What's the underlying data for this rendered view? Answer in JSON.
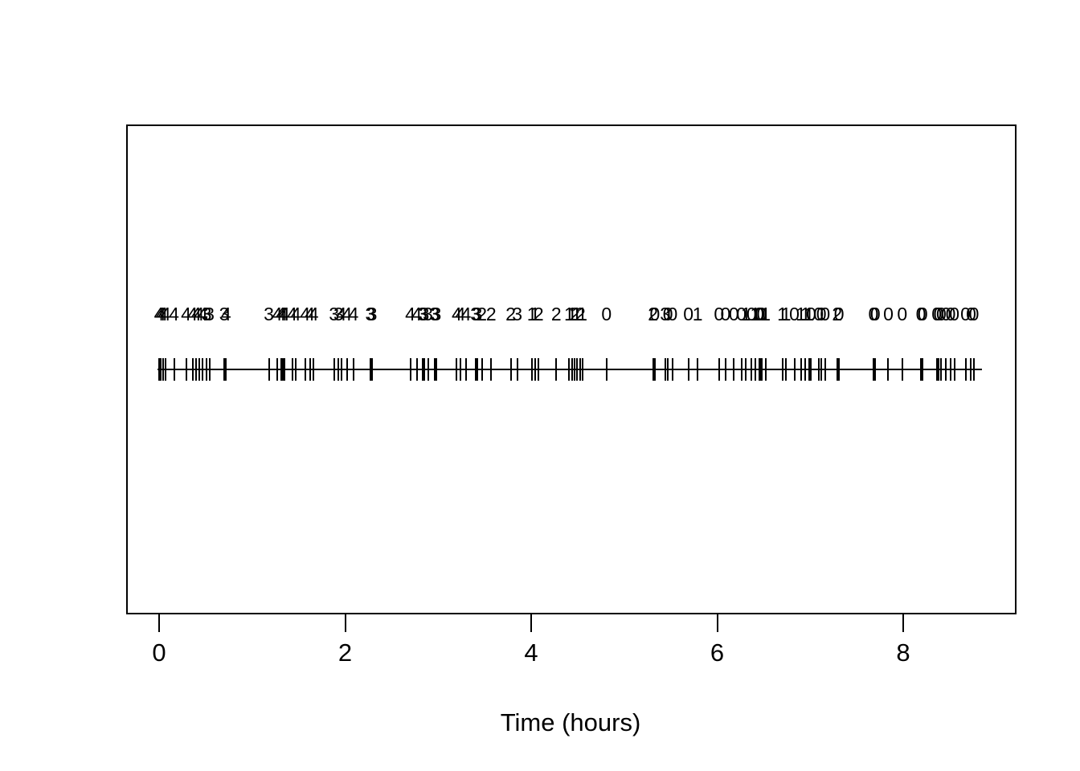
{
  "figure": {
    "xlabel": "Time (hours)",
    "background": "#ffffff",
    "foreground": "#000000"
  },
  "chart_data": {
    "type": "scatter",
    "subtype": "rug-event-plot-with-marks",
    "title": "",
    "xlabel": "Time (hours)",
    "ylabel": "",
    "xlim": [
      0,
      9
    ],
    "axis_ticks": [
      0,
      2,
      4,
      6,
      8
    ],
    "grid": false,
    "legend": false,
    "marks_meaning": "integer mark printed above each event time",
    "events": [
      [
        0.0,
        4
      ],
      [
        0.02,
        4
      ],
      [
        0.04,
        4
      ],
      [
        0.07,
        4
      ],
      [
        0.16,
        4
      ],
      [
        0.29,
        4
      ],
      [
        0.36,
        4
      ],
      [
        0.4,
        4
      ],
      [
        0.43,
        4
      ],
      [
        0.47,
        4
      ],
      [
        0.51,
        3
      ],
      [
        0.54,
        3
      ],
      [
        0.7,
        3
      ],
      [
        0.72,
        4
      ],
      [
        1.18,
        3
      ],
      [
        1.27,
        4
      ],
      [
        1.31,
        4
      ],
      [
        1.33,
        4
      ],
      [
        1.35,
        4
      ],
      [
        1.43,
        4
      ],
      [
        1.47,
        4
      ],
      [
        1.57,
        4
      ],
      [
        1.62,
        4
      ],
      [
        1.66,
        4
      ],
      [
        1.88,
        3
      ],
      [
        1.93,
        3
      ],
      [
        1.96,
        4
      ],
      [
        2.02,
        4
      ],
      [
        2.09,
        4
      ],
      [
        2.27,
        3
      ],
      [
        2.29,
        3
      ],
      [
        2.7,
        4
      ],
      [
        2.77,
        4
      ],
      [
        2.83,
        3
      ],
      [
        2.85,
        3
      ],
      [
        2.89,
        3
      ],
      [
        2.96,
        3
      ],
      [
        2.98,
        3
      ],
      [
        3.2,
        4
      ],
      [
        3.24,
        4
      ],
      [
        3.3,
        4
      ],
      [
        3.4,
        3
      ],
      [
        3.42,
        3
      ],
      [
        3.47,
        2
      ],
      [
        3.57,
        2
      ],
      [
        3.78,
        2
      ],
      [
        3.85,
        3
      ],
      [
        4.01,
        1
      ],
      [
        4.04,
        1
      ],
      [
        4.08,
        2
      ],
      [
        4.27,
        2
      ],
      [
        4.41,
        1
      ],
      [
        4.44,
        1
      ],
      [
        4.47,
        2
      ],
      [
        4.49,
        1
      ],
      [
        4.53,
        2
      ],
      [
        4.55,
        1
      ],
      [
        4.81,
        0
      ],
      [
        5.31,
        2
      ],
      [
        5.33,
        0
      ],
      [
        5.44,
        3
      ],
      [
        5.47,
        0
      ],
      [
        5.52,
        0
      ],
      [
        5.69,
        0
      ],
      [
        5.79,
        1
      ],
      [
        6.02,
        0
      ],
      [
        6.09,
        0
      ],
      [
        6.18,
        0
      ],
      [
        6.26,
        0
      ],
      [
        6.31,
        1
      ],
      [
        6.37,
        0
      ],
      [
        6.41,
        1
      ],
      [
        6.45,
        0
      ],
      [
        6.46,
        0
      ],
      [
        6.48,
        0
      ],
      [
        6.52,
        1
      ],
      [
        6.7,
        1
      ],
      [
        6.74,
        1
      ],
      [
        6.83,
        0
      ],
      [
        6.9,
        1
      ],
      [
        6.95,
        1
      ],
      [
        6.99,
        1
      ],
      [
        7.01,
        0
      ],
      [
        7.09,
        0
      ],
      [
        7.12,
        0
      ],
      [
        7.16,
        0
      ],
      [
        7.29,
        2
      ],
      [
        7.31,
        0
      ],
      [
        7.68,
        0
      ],
      [
        7.7,
        0
      ],
      [
        7.84,
        0
      ],
      [
        7.99,
        0
      ],
      [
        8.19,
        0
      ],
      [
        8.21,
        0
      ],
      [
        8.36,
        0
      ],
      [
        8.38,
        0
      ],
      [
        8.41,
        0
      ],
      [
        8.46,
        0
      ],
      [
        8.51,
        0
      ],
      [
        8.55,
        0
      ],
      [
        8.67,
        0
      ],
      [
        8.73,
        0
      ],
      [
        8.76,
        0
      ]
    ],
    "rug_line_extent_hours": [
      -0.02,
      8.85
    ]
  }
}
